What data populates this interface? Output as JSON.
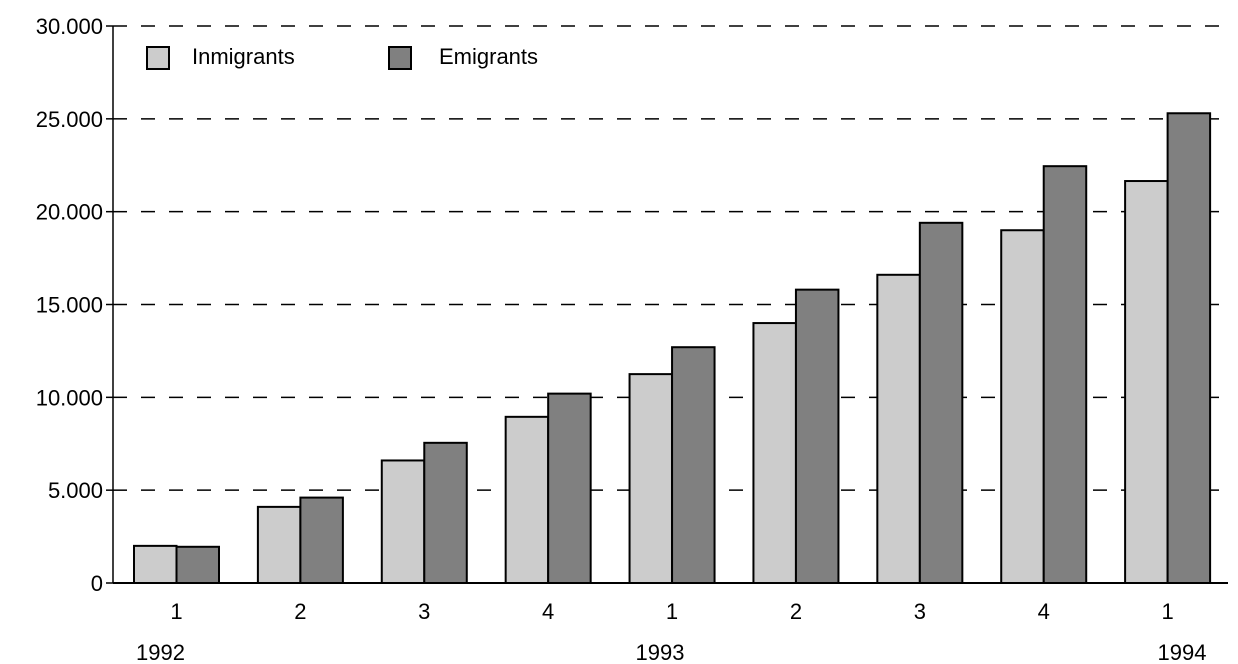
{
  "chart_data": {
    "type": "bar",
    "title": "",
    "xlabel": "",
    "ylabel": "",
    "categories": [
      "1",
      "2",
      "3",
      "4",
      "1",
      "2",
      "3",
      "4",
      "1"
    ],
    "year_labels": [
      "1992",
      "1993",
      "1994"
    ],
    "series": [
      {
        "name": "Inmigrants",
        "color": "#cccccc",
        "values": [
          2000,
          4100,
          6600,
          8950,
          11250,
          14000,
          16600,
          19000,
          21650
        ]
      },
      {
        "name": "Emigrants",
        "color": "#808080",
        "values": [
          1950,
          4600,
          7550,
          10200,
          12700,
          15800,
          19400,
          22450,
          25300
        ]
      }
    ],
    "ylim": [
      0,
      30000
    ],
    "yticks": [
      0,
      5000,
      10000,
      15000,
      20000,
      25000,
      30000
    ],
    "ytick_labels": [
      "0",
      "5.000",
      "10.000",
      "15.000",
      "20.000",
      "25.000",
      "30.000"
    ],
    "grid": "dashed horizontal",
    "legend": "top-left"
  }
}
